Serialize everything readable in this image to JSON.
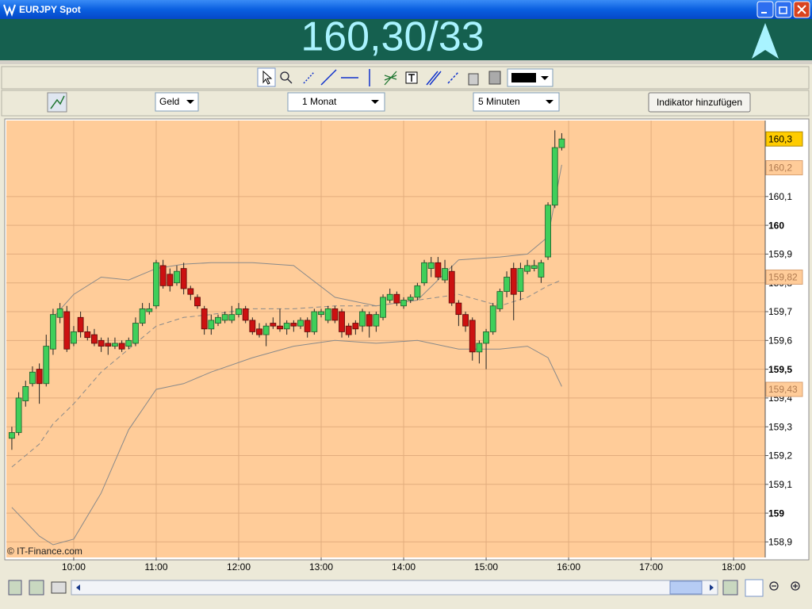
{
  "window": {
    "title": "EURJPY Spot"
  },
  "quote": "160,30/33",
  "toolbar": {
    "selects": [
      "Geld",
      "1 Monat",
      "5 Minuten"
    ],
    "button": "Indikator hinzufügen"
  },
  "chart_data": {
    "type": "candlestick",
    "annotation": "© IT-Finance.com",
    "up_color": "#3fcf5a",
    "down_color": "#cc1111",
    "x": [
      "09:15",
      "09:20",
      "09:25",
      "09:30",
      "09:35",
      "09:40",
      "09:45",
      "09:50",
      "09:55",
      "10:00",
      "10:05",
      "10:10",
      "10:15",
      "10:20",
      "10:25",
      "10:30",
      "10:35",
      "10:40",
      "10:45",
      "10:50",
      "10:55",
      "11:00",
      "11:05",
      "11:10",
      "11:15",
      "11:20",
      "11:25",
      "11:30",
      "11:35",
      "11:40",
      "11:45",
      "11:50",
      "11:55",
      "12:00",
      "12:05",
      "12:10",
      "12:15",
      "12:20",
      "12:25",
      "12:30",
      "12:35",
      "12:40",
      "12:45",
      "12:50",
      "12:55",
      "13:00",
      "13:05",
      "13:10",
      "13:15",
      "13:20",
      "13:25",
      "13:30",
      "13:35",
      "13:40",
      "13:45",
      "13:50",
      "13:55",
      "14:00",
      "14:05",
      "14:10",
      "14:15",
      "14:20",
      "14:25",
      "14:30",
      "14:35",
      "14:40",
      "14:45",
      "14:50",
      "14:55",
      "15:00",
      "15:05",
      "15:10",
      "15:15",
      "15:20",
      "15:25",
      "15:30",
      "15:35",
      "15:40",
      "15:45",
      "15:50",
      "15:55"
    ],
    "open": [
      159.26,
      159.28,
      159.39,
      159.45,
      159.5,
      159.45,
      159.57,
      159.68,
      159.7,
      159.59,
      159.68,
      159.63,
      159.62,
      159.6,
      159.59,
      159.58,
      159.59,
      159.58,
      159.59,
      159.66,
      159.7,
      159.72,
      159.86,
      159.83,
      159.8,
      159.85,
      159.78,
      159.75,
      159.71,
      159.64,
      159.66,
      159.67,
      159.67,
      159.69,
      159.71,
      159.67,
      159.64,
      159.62,
      159.66,
      159.65,
      159.64,
      159.66,
      159.65,
      159.67,
      159.63,
      159.69,
      159.67,
      159.71,
      159.7,
      159.65,
      159.66,
      159.65,
      159.69,
      159.65,
      159.68,
      159.74,
      159.76,
      159.72,
      159.74,
      159.75,
      159.8,
      159.85,
      159.87,
      159.81,
      159.84,
      159.73,
      159.69,
      159.67,
      159.56,
      159.59,
      159.63,
      159.71,
      159.77,
      159.85,
      159.77,
      159.84,
      159.85,
      159.82,
      159.89,
      160.07,
      160.27
    ],
    "high": [
      159.3,
      159.42,
      159.46,
      159.51,
      159.52,
      159.62,
      159.71,
      159.73,
      159.72,
      159.65,
      159.7,
      159.65,
      159.64,
      159.61,
      159.61,
      159.61,
      159.6,
      159.61,
      159.68,
      159.73,
      159.73,
      159.88,
      159.88,
      159.85,
      159.86,
      159.87,
      159.79,
      159.76,
      159.72,
      159.69,
      159.69,
      159.7,
      159.72,
      159.73,
      159.72,
      159.68,
      159.66,
      159.66,
      159.68,
      159.71,
      159.67,
      159.67,
      159.68,
      159.68,
      159.71,
      159.71,
      159.72,
      159.72,
      159.71,
      159.66,
      159.67,
      159.71,
      159.7,
      159.7,
      159.76,
      159.78,
      159.77,
      159.75,
      159.76,
      159.8,
      159.88,
      159.89,
      159.89,
      159.88,
      159.86,
      159.74,
      159.7,
      159.68,
      159.6,
      159.64,
      159.73,
      159.78,
      159.84,
      159.87,
      159.87,
      159.88,
      159.88,
      159.88,
      160.08,
      160.33,
      160.32
    ],
    "low": [
      159.22,
      159.27,
      159.37,
      159.44,
      159.38,
      159.44,
      159.55,
      159.66,
      159.56,
      159.58,
      159.61,
      159.6,
      159.58,
      159.56,
      159.55,
      159.57,
      159.56,
      159.57,
      159.58,
      159.65,
      159.69,
      159.71,
      159.78,
      159.77,
      159.79,
      159.76,
      159.74,
      159.71,
      159.62,
      159.62,
      159.65,
      159.66,
      159.66,
      159.68,
      159.66,
      159.62,
      159.61,
      159.58,
      159.64,
      159.63,
      159.62,
      159.63,
      159.64,
      159.61,
      159.62,
      159.68,
      159.66,
      159.66,
      159.61,
      159.61,
      159.62,
      159.63,
      159.61,
      159.63,
      159.67,
      159.73,
      159.72,
      159.71,
      159.73,
      159.74,
      159.79,
      159.82,
      159.81,
      159.8,
      159.72,
      159.65,
      159.63,
      159.53,
      159.52,
      159.5,
      159.62,
      159.7,
      159.75,
      159.67,
      159.74,
      159.83,
      159.84,
      159.8,
      159.88,
      160.06,
      160.26
    ],
    "close": [
      159.28,
      159.4,
      159.44,
      159.49,
      159.45,
      159.58,
      159.69,
      159.71,
      159.57,
      159.63,
      159.63,
      159.61,
      159.59,
      159.58,
      159.58,
      159.59,
      159.57,
      159.6,
      159.66,
      159.71,
      159.71,
      159.87,
      159.79,
      159.79,
      159.84,
      159.78,
      159.76,
      159.72,
      159.64,
      159.67,
      159.68,
      159.69,
      159.69,
      159.71,
      159.67,
      159.63,
      159.62,
      159.65,
      159.65,
      159.64,
      159.66,
      159.65,
      159.67,
      159.63,
      159.7,
      159.7,
      159.71,
      159.67,
      159.63,
      159.62,
      159.64,
      159.7,
      159.65,
      159.69,
      159.75,
      159.76,
      159.73,
      159.74,
      159.75,
      159.79,
      159.87,
      159.87,
      159.82,
      159.85,
      159.73,
      159.69,
      159.65,
      159.56,
      159.59,
      159.63,
      159.72,
      159.77,
      159.82,
      159.76,
      159.85,
      159.86,
      159.86,
      159.87,
      160.07,
      160.27,
      160.3
    ],
    "lines": {
      "x": [
        "09:15",
        "09:35",
        "09:45",
        "10:00",
        "10:20",
        "10:40",
        "11:00",
        "11:20",
        "11:40",
        "12:10",
        "12:40",
        "13:10",
        "13:40",
        "14:10",
        "14:40",
        "15:10",
        "15:30",
        "15:45",
        "15:55"
      ],
      "series": [
        {
          "color": "#8a8a8a",
          "dashed": false,
          "values": [
            null,
            null,
            159.68,
            159.76,
            159.82,
            159.81,
            159.85,
            159.865,
            159.87,
            159.87,
            159.86,
            159.75,
            159.72,
            159.74,
            159.88,
            159.89,
            159.9,
            159.96,
            160.21
          ]
        },
        {
          "color": "#8a8a8a",
          "dashed": true,
          "values": [
            159.16,
            159.24,
            159.31,
            159.38,
            159.49,
            159.57,
            159.65,
            159.68,
            159.69,
            159.71,
            159.71,
            159.72,
            159.72,
            159.74,
            159.76,
            159.72,
            159.75,
            159.79,
            159.81
          ]
        },
        {
          "color": "#8a8a8a",
          "dashed": false,
          "values": [
            159.02,
            158.92,
            158.89,
            158.91,
            159.07,
            159.29,
            159.43,
            159.45,
            159.49,
            159.54,
            159.58,
            159.6,
            159.59,
            159.6,
            159.57,
            159.57,
            159.58,
            159.54,
            159.44
          ]
        }
      ]
    },
    "xlim": [
      "09:11",
      "18:23"
    ],
    "xticks": [
      "10:00",
      "11:00",
      "12:00",
      "13:00",
      "14:00",
      "15:00",
      "16:00",
      "17:00",
      "18:00"
    ],
    "ylim": [
      158.846,
      160.364
    ],
    "yticks": [
      {
        "value": 158.9,
        "label": "158,9"
      },
      159,
      {
        "value": 159.1,
        "label": "159,1"
      },
      {
        "value": 159.2,
        "label": "159,2"
      },
      {
        "value": 159.3,
        "label": "159,3"
      },
      {
        "value": 159.4,
        "label": "159,4"
      },
      {
        "value": 159.5,
        "label": "159,5"
      },
      {
        "value": 159.6,
        "label": "159,6"
      },
      {
        "value": 159.7,
        "label": "159,7"
      },
      {
        "value": 159.8,
        "label": "159,8"
      },
      {
        "value": 159.9,
        "label": "159,9"
      },
      160,
      {
        "value": 160.1,
        "label": "160,1"
      }
    ],
    "grid": true,
    "current_price_tag": {
      "value": 160.3,
      "label": "160,3"
    },
    "band_tags": [
      {
        "value": 160.2,
        "label": "160,2"
      },
      {
        "value": 159.82,
        "label": "159,82"
      },
      {
        "value": 159.43,
        "label": "159,43"
      }
    ]
  }
}
